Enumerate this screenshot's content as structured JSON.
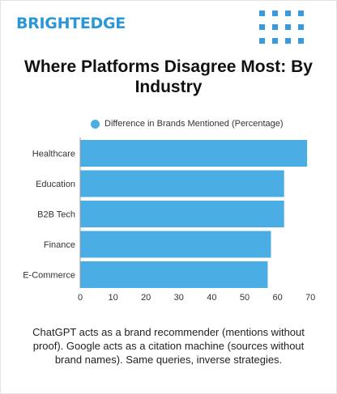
{
  "brand": {
    "name": "BRIGHTEDGE",
    "color": "#2b97d7"
  },
  "chart_data": {
    "type": "bar",
    "orientation": "horizontal",
    "title": "Where Platforms Disagree Most: By Industry",
    "categories": [
      "Healthcare",
      "Education",
      "B2B Tech",
      "Finance",
      "E-Commerce"
    ],
    "series": [
      {
        "name": "Difference in Brands Mentioned (Percentage)",
        "values": [
          69,
          62,
          62,
          58,
          57
        ],
        "color": "#4aaee4"
      }
    ],
    "xlim": [
      0,
      70
    ],
    "xticks": [
      0,
      10,
      20,
      30,
      40,
      50,
      60,
      70
    ],
    "legend": "top",
    "grid": false
  },
  "caption": "ChatGPT acts as a brand recommender (mentions without proof). Google acts as a citation machine (sources without brand names). Same queries, inverse strategies."
}
